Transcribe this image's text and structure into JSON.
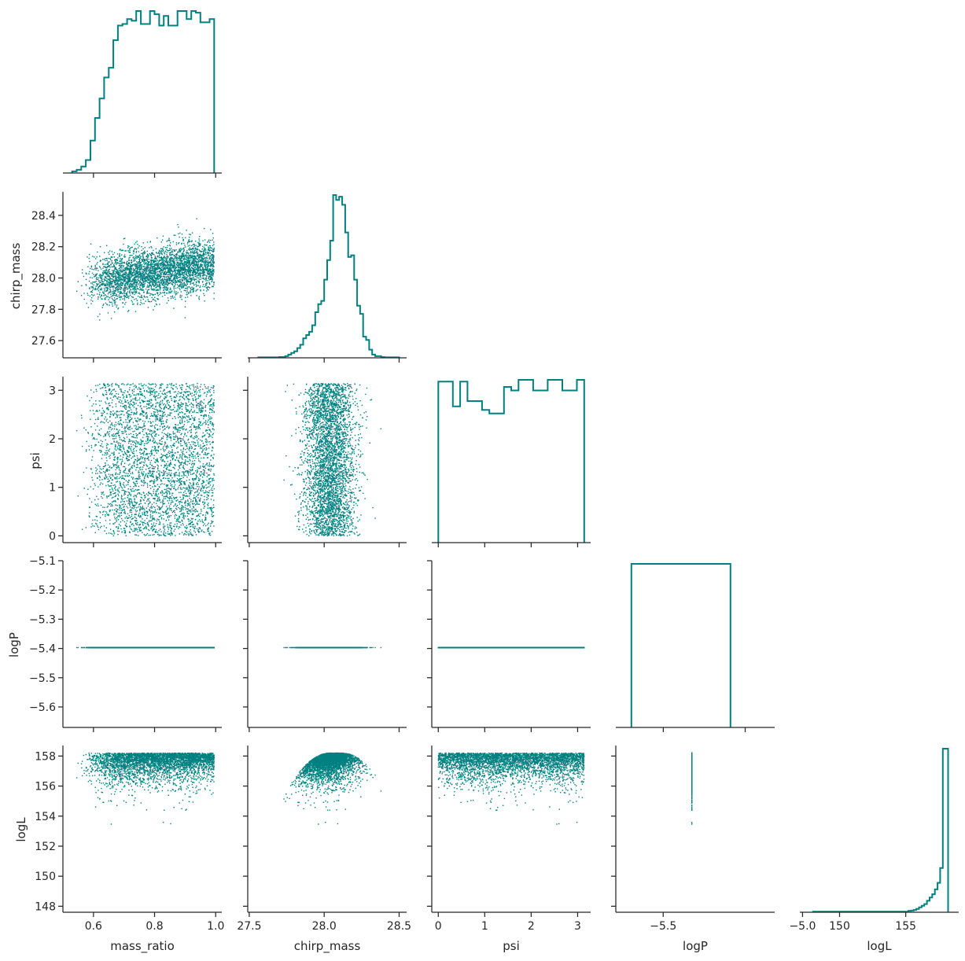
{
  "chart_data": {
    "type": "pairplot-corner",
    "color": "#008080",
    "variables": [
      "mass_ratio",
      "chirp_mass",
      "psi",
      "logP",
      "logL"
    ],
    "x_axis_labels": [
      "mass_ratio",
      "chirp_mass",
      "psi",
      "logP",
      "logL"
    ],
    "y_axis_labels": [
      "",
      "chirp_mass",
      "psi",
      "logP",
      "logL"
    ],
    "ranges": {
      "mass_ratio": [
        0.5,
        1.02
      ],
      "chirp_mass": [
        27.49,
        28.55
      ],
      "psi": [
        -0.14,
        3.28
      ],
      "logP": [
        -5.67,
        -5.1
      ],
      "logL": [
        147.6,
        158.7
      ]
    },
    "ranges_x_hist": {
      "logP": [
        -5.79,
        -4.82
      ],
      "logL": [
        147.0,
        159.0
      ]
    },
    "ticks": {
      "mass_ratio": [
        {
          "v": 0.6,
          "t": "0.6"
        },
        {
          "v": 0.8,
          "t": "0.8"
        },
        {
          "v": 1.0,
          "t": "1.0"
        }
      ],
      "chirp_mass": [
        {
          "v": 27.5,
          "t": "27.5"
        },
        {
          "v": 28.0,
          "t": "28.0"
        },
        {
          "v": 28.5,
          "t": "28.5"
        }
      ],
      "chirp_mass_y": [
        {
          "v": 27.6,
          "t": "27.6"
        },
        {
          "v": 27.8,
          "t": "27.8"
        },
        {
          "v": 28.0,
          "t": "28.0"
        },
        {
          "v": 28.2,
          "t": "28.2"
        },
        {
          "v": 28.4,
          "t": "28.4"
        }
      ],
      "psi": [
        {
          "v": 0,
          "t": "0"
        },
        {
          "v": 1,
          "t": "1"
        },
        {
          "v": 2,
          "t": "2"
        },
        {
          "v": 3,
          "t": "3"
        }
      ],
      "logP_y": [
        {
          "v": -5.6,
          "t": "−5.6"
        },
        {
          "v": -5.5,
          "t": "−5.5"
        },
        {
          "v": -5.4,
          "t": "−5.4"
        },
        {
          "v": -5.3,
          "t": "−5.3"
        },
        {
          "v": -5.2,
          "t": "−5.2"
        },
        {
          "v": -5.1,
          "t": "−5.1"
        }
      ],
      "logP_x": [
        {
          "v": -5.5,
          "t": "−5.5"
        },
        {
          "v": -5.0,
          "t": "−5.0"
        }
      ],
      "logL_y": [
        {
          "v": 148,
          "t": "148"
        },
        {
          "v": 150,
          "t": "150"
        },
        {
          "v": 152,
          "t": "152"
        },
        {
          "v": 154,
          "t": "154"
        },
        {
          "v": 156,
          "t": "156"
        },
        {
          "v": 158,
          "t": "158"
        }
      ],
      "logL_x": [
        {
          "v": 150,
          "t": "150"
        },
        {
          "v": 155,
          "t": "155"
        }
      ]
    },
    "histograms": {
      "mass_ratio": {
        "edges": [
          0.53,
          0.545,
          0.56,
          0.575,
          0.59,
          0.605,
          0.62,
          0.635,
          0.65,
          0.665,
          0.68,
          0.695,
          0.71,
          0.725,
          0.74,
          0.755,
          0.77,
          0.785,
          0.8,
          0.815,
          0.83,
          0.845,
          0.86,
          0.875,
          0.89,
          0.905,
          0.92,
          0.935,
          0.95,
          0.965,
          0.98,
          0.995
        ],
        "counts": [
          1,
          2,
          4,
          8,
          20,
          34,
          46,
          59,
          65,
          82,
          91,
          92,
          95,
          94,
          100,
          92,
          92,
          100,
          98,
          91,
          97,
          91,
          91,
          100,
          100,
          95,
          100,
          99,
          93,
          93,
          95
        ]
      },
      "chirp_mass": {
        "edges": [
          27.56,
          27.58,
          27.6,
          27.62,
          27.64,
          27.66,
          27.68,
          27.7,
          27.72,
          27.74,
          27.76,
          27.78,
          27.8,
          27.82,
          27.84,
          27.86,
          27.88,
          27.9,
          27.92,
          27.94,
          27.96,
          27.98,
          28.0,
          28.02,
          28.04,
          28.06,
          28.08,
          28.1,
          28.12,
          28.14,
          28.16,
          28.18,
          28.2,
          28.22,
          28.24,
          28.26,
          28.28,
          28.3,
          28.32,
          28.34,
          28.36,
          28.38,
          28.4,
          28.42,
          28.44,
          28.46,
          28.48,
          28.5
        ],
        "counts": [
          0.3,
          0.3,
          0.3,
          0.3,
          0.3,
          0.3,
          0.3,
          0.5,
          0.5,
          1,
          2,
          3,
          4,
          6,
          8,
          12,
          14,
          16,
          20,
          28,
          33,
          35,
          48,
          60,
          72,
          100,
          97,
          99,
          94,
          77,
          62,
          63,
          48,
          32,
          27,
          13,
          11,
          5,
          2,
          1,
          1,
          0.5,
          0.3,
          0.3,
          0.3,
          0.3,
          0.3
        ]
      },
      "psi": {
        "edges": [
          0.0,
          0.1571,
          0.3142,
          0.4712,
          0.6283,
          0.7854,
          0.9425,
          1.0996,
          1.2566,
          1.4137,
          1.5708,
          1.7279,
          1.885,
          2.042,
          2.1991,
          2.3562,
          2.5133,
          2.6704,
          2.8274,
          2.9845,
          3.1416
        ],
        "counts": [
          91,
          91,
          77,
          91,
          80,
          80,
          75,
          73,
          73,
          88,
          86,
          92,
          92,
          86,
          86,
          92,
          92,
          86,
          86,
          92
        ]
      },
      "logP": {
        "edges": [
          -5.695,
          -5.09
        ],
        "counts": [
          100
        ]
      },
      "logL": {
        "edges": [
          148.0,
          155.2,
          155.4,
          155.6,
          155.8,
          156.0,
          156.2,
          156.4,
          156.6,
          156.8,
          157.0,
          157.2,
          157.4,
          157.6,
          157.8,
          158.0,
          158.2
        ],
        "counts": [
          0.4,
          0.8,
          1,
          1.4,
          2,
          3,
          4,
          5,
          7,
          9,
          11,
          14,
          18,
          27,
          100,
          100
        ]
      }
    }
  }
}
